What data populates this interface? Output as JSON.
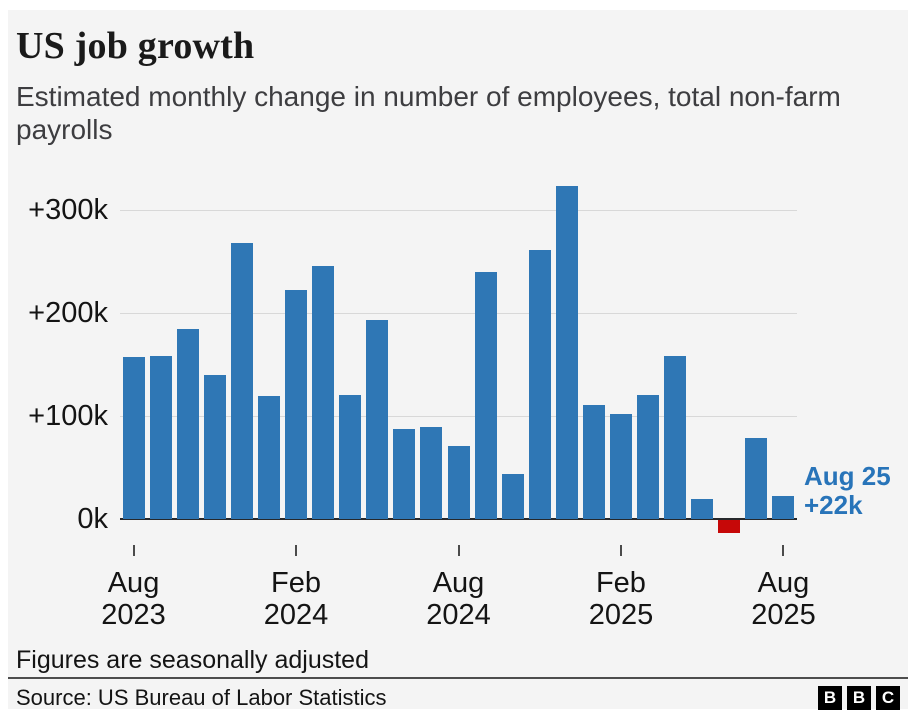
{
  "header": {
    "title": "US job growth",
    "subtitle": "Estimated monthly change in number of employees, total non-farm payrolls"
  },
  "chart_data": {
    "type": "bar",
    "title": "US job growth",
    "subtitle": "Estimated monthly change in number of employees, total non-farm payrolls",
    "unit": "thousands of employees (k)",
    "x": [
      "Aug 2023",
      "Sep 2023",
      "Oct 2023",
      "Nov 2023",
      "Dec 2023",
      "Jan 2024",
      "Feb 2024",
      "Mar 2024",
      "Apr 2024",
      "May 2024",
      "Jun 2024",
      "Jul 2024",
      "Aug 2024",
      "Sep 2024",
      "Oct 2024",
      "Nov 2024",
      "Dec 2024",
      "Jan 2025",
      "Feb 2025",
      "Mar 2025",
      "Apr 2025",
      "May 2025",
      "Jun 2025",
      "Jul 2025",
      "Aug 2025"
    ],
    "values": [
      157,
      158,
      184,
      140,
      268,
      119,
      222,
      246,
      120,
      193,
      87,
      89,
      71,
      240,
      44,
      261,
      323,
      111,
      102,
      120,
      158,
      19,
      -13,
      79,
      22
    ],
    "ylim": [
      -30,
      340
    ],
    "yticks": [
      {
        "value": 0,
        "label": "0k"
      },
      {
        "value": 100,
        "label": "+100k"
      },
      {
        "value": 200,
        "label": "+200k"
      },
      {
        "value": 300,
        "label": "+300k"
      }
    ],
    "xticks": [
      {
        "index": 0,
        "month": "Aug",
        "year": "2023"
      },
      {
        "index": 6,
        "month": "Feb",
        "year": "2024"
      },
      {
        "index": 12,
        "month": "Aug",
        "year": "2024"
      },
      {
        "index": 18,
        "month": "Feb",
        "year": "2025"
      },
      {
        "index": 24,
        "month": "Aug",
        "year": "2025"
      }
    ],
    "annotation": {
      "line1": "Aug 25",
      "line2": "+22k"
    },
    "colors": {
      "bar_positive": "#2f77b5",
      "bar_negative": "#c60808",
      "annotation_text": "#2874b9",
      "gridline": "#d8d8d8",
      "axis_line": "#26282b",
      "background": "#f4f4f4"
    },
    "grid": true,
    "legend": false
  },
  "footer": {
    "note": "Figures are seasonally adjusted",
    "source": "Source: US Bureau of Labor Statistics",
    "logo_letters": [
      "B",
      "B",
      "C"
    ]
  }
}
